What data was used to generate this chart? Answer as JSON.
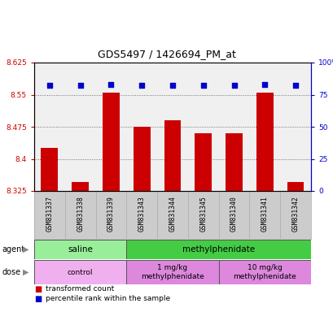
{
  "title": "GDS5497 / 1426694_PM_at",
  "samples": [
    "GSM831337",
    "GSM831338",
    "GSM831339",
    "GSM831343",
    "GSM831344",
    "GSM831345",
    "GSM831340",
    "GSM831341",
    "GSM831342"
  ],
  "bar_values": [
    8.425,
    8.345,
    8.555,
    8.475,
    8.49,
    8.46,
    8.46,
    8.555,
    8.345
  ],
  "percentile_values": [
    82,
    82,
    83,
    82,
    82,
    82,
    82,
    83,
    82
  ],
  "y_min": 8.325,
  "y_max": 8.625,
  "y_ticks": [
    8.325,
    8.4,
    8.475,
    8.55,
    8.625
  ],
  "y_tick_labels": [
    "8.325",
    "8.4",
    "8.475",
    "8.55",
    "8.625"
  ],
  "right_y_ticks": [
    0,
    25,
    50,
    75,
    100
  ],
  "right_y_tick_labels": [
    "0",
    "25",
    "50",
    "75",
    "100%"
  ],
  "bar_color": "#cc0000",
  "dot_color": "#0000cc",
  "bar_base": 8.325,
  "agent_labels": [
    {
      "text": "saline",
      "start": 0,
      "end": 3,
      "color": "#99ee99"
    },
    {
      "text": "methylphenidate",
      "start": 3,
      "end": 9,
      "color": "#44cc44"
    }
  ],
  "dose_labels": [
    {
      "text": "control",
      "start": 0,
      "end": 3,
      "color": "#f0b0f0"
    },
    {
      "text": "1 mg/kg\nmethylphenidate",
      "start": 3,
      "end": 6,
      "color": "#dd88dd"
    },
    {
      "text": "10 mg/kg\nmethylphenidate",
      "start": 6,
      "end": 9,
      "color": "#dd88dd"
    }
  ],
  "legend_red_label": "transformed count",
  "legend_blue_label": "percentile rank within the sample",
  "grid_color": "#888888",
  "tick_label_color_left": "#cc0000",
  "tick_label_color_right": "#0000cc",
  "chart_bg": "#f0f0f0",
  "sample_bg": "#cccccc"
}
